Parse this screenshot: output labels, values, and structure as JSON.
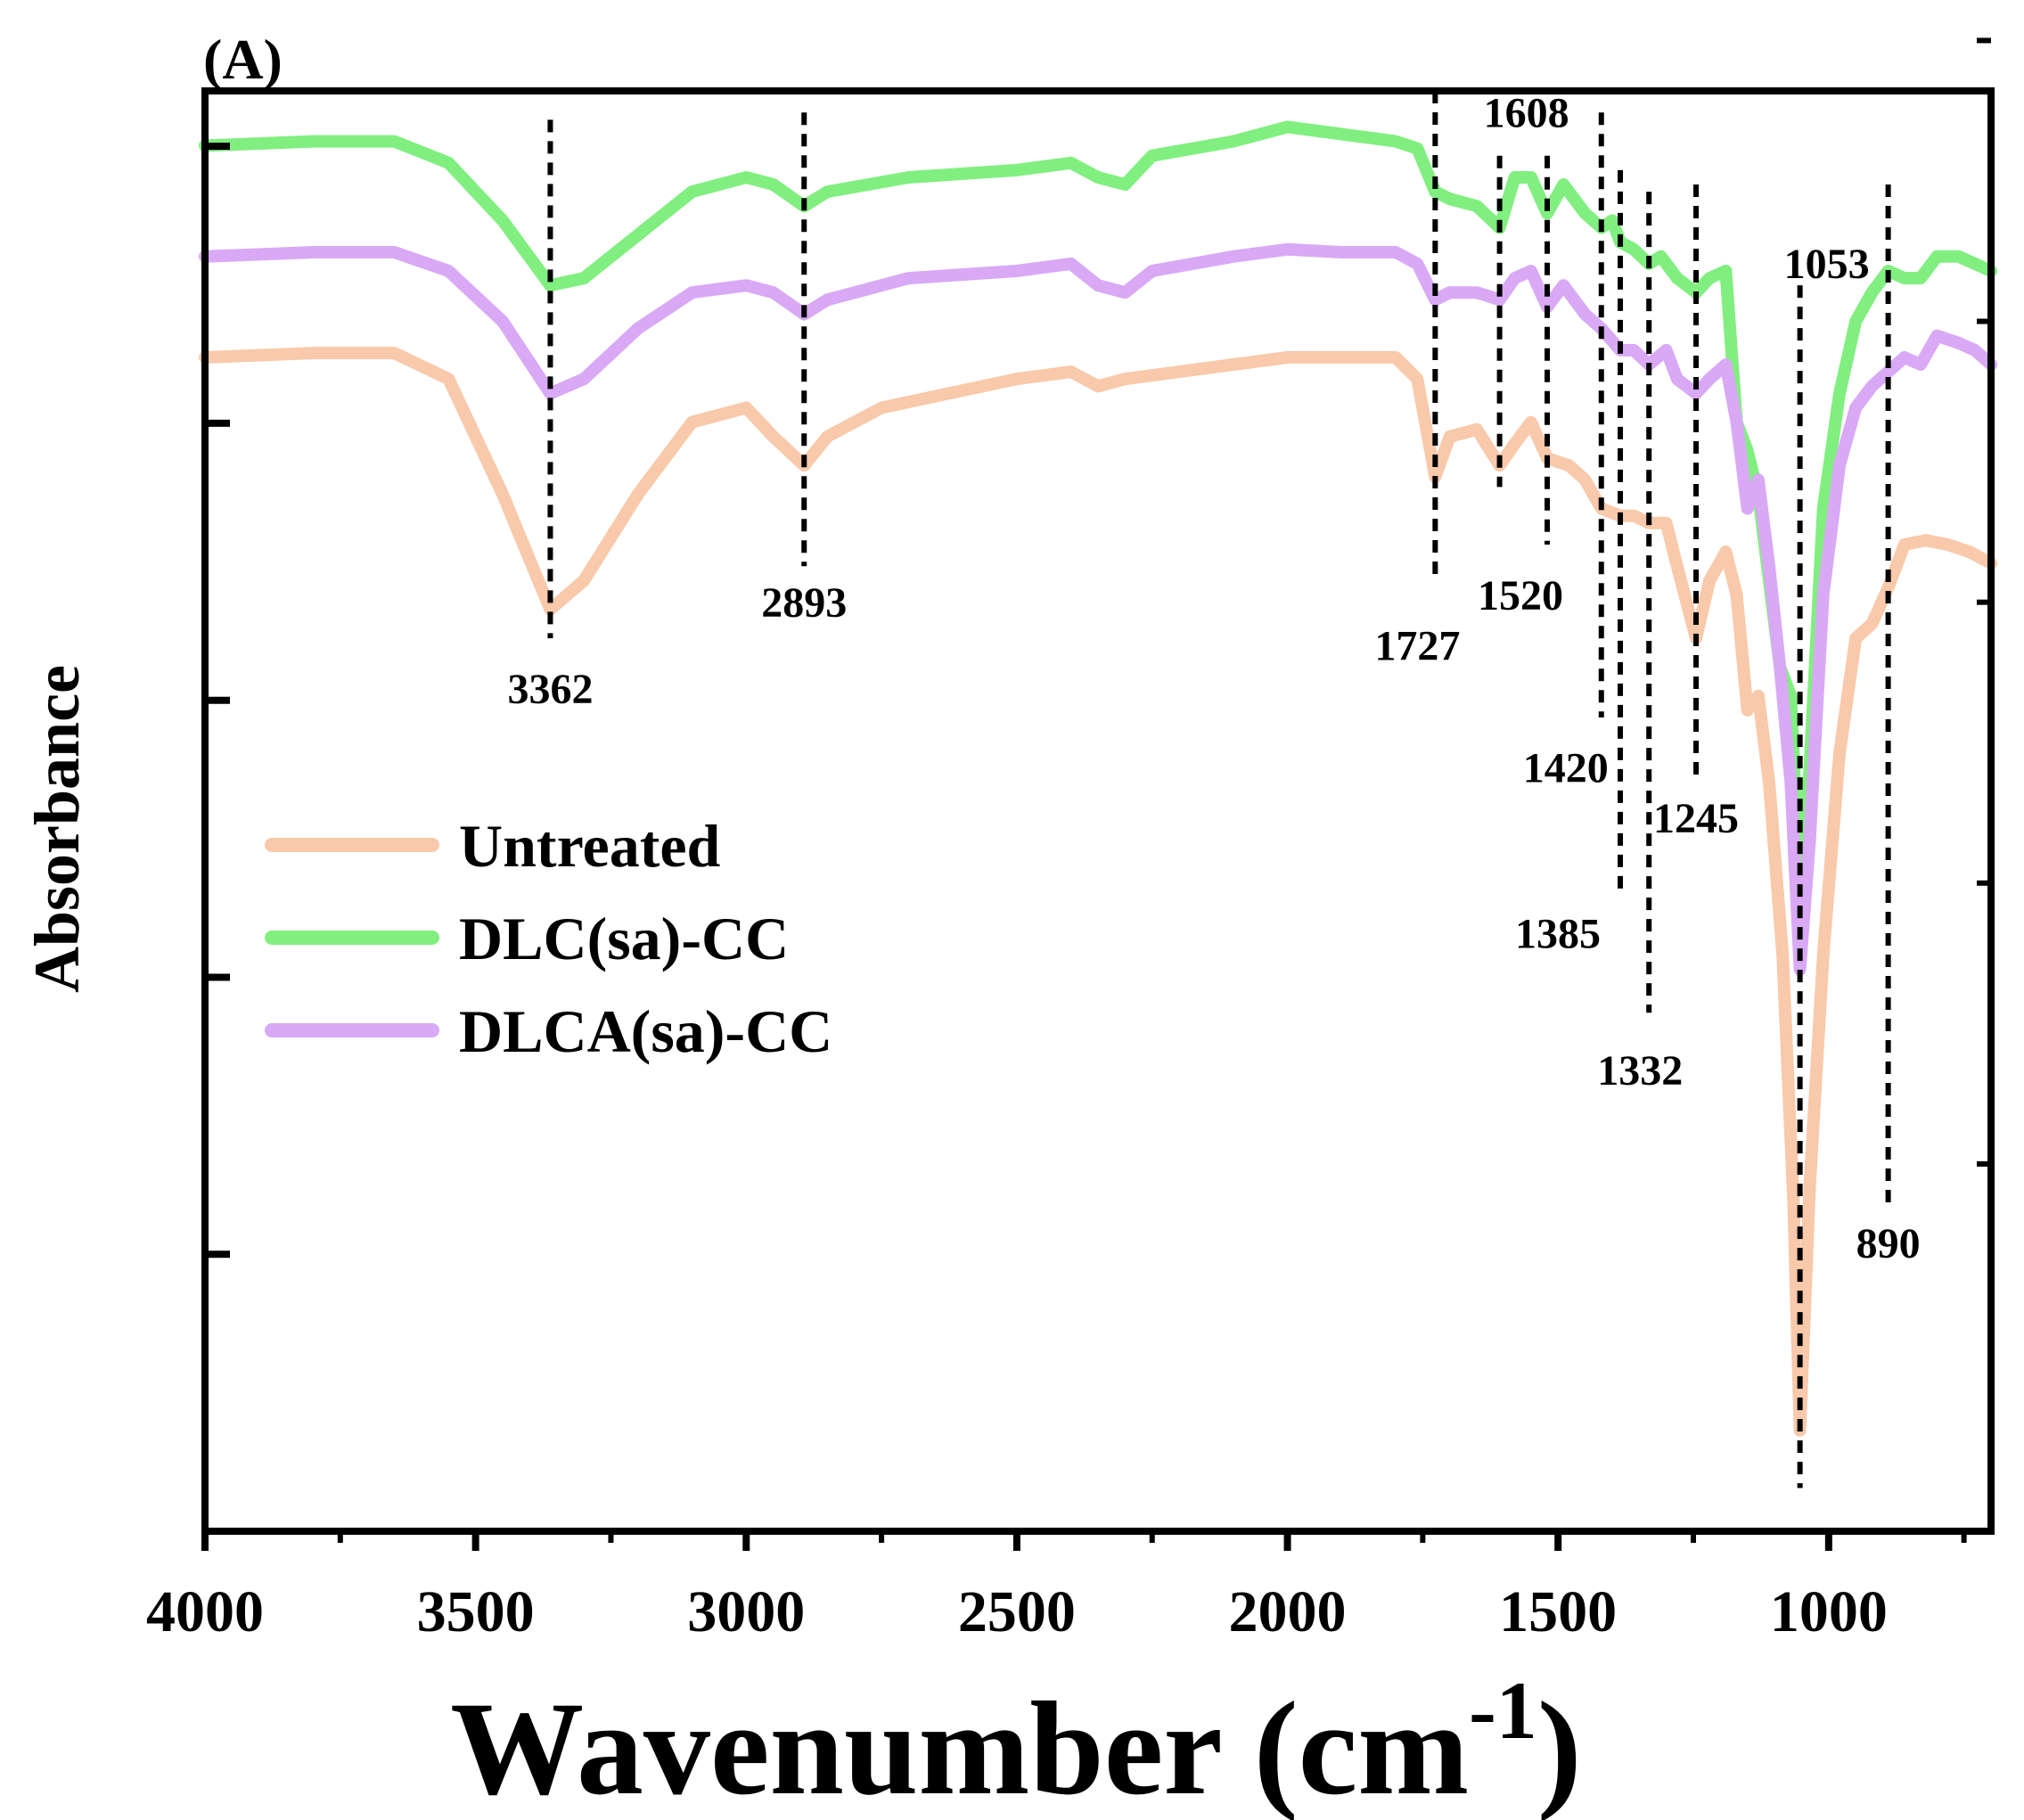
{
  "chart_data": {
    "type": "line",
    "panel_label": "(A)",
    "title": "",
    "xlabel": "Wavenumber (cm",
    "xlabel_superscript": "-1",
    "xlabel_close": ")",
    "ylabel": "Absorbance",
    "xlim": [
      4000,
      700
    ],
    "x_reversed": true,
    "ylim": [
      0,
      1
    ],
    "y_ticklabels_shown": false,
    "x_ticks": [
      4000,
      3500,
      3000,
      2500,
      2000,
      1500,
      1000
    ],
    "x_ticklabels": [
      "4000",
      "3500",
      "3000",
      "2500",
      "2000",
      "1500",
      "1000"
    ],
    "grid": false,
    "legend_position": "center-left",
    "series": [
      {
        "name": "Untreated",
        "color": "#F8C9AA",
        "points": [
          [
            4000,
            0.815
          ],
          [
            3800,
            0.818
          ],
          [
            3650,
            0.818
          ],
          [
            3550,
            0.8
          ],
          [
            3450,
            0.72
          ],
          [
            3362,
            0.64
          ],
          [
            3300,
            0.66
          ],
          [
            3200,
            0.72
          ],
          [
            3100,
            0.77
          ],
          [
            3000,
            0.78
          ],
          [
            2950,
            0.76
          ],
          [
            2893,
            0.74
          ],
          [
            2850,
            0.76
          ],
          [
            2750,
            0.78
          ],
          [
            2500,
            0.8
          ],
          [
            2400,
            0.805
          ],
          [
            2350,
            0.795
          ],
          [
            2300,
            0.8
          ],
          [
            2100,
            0.81
          ],
          [
            2000,
            0.815
          ],
          [
            1900,
            0.815
          ],
          [
            1800,
            0.815
          ],
          [
            1760,
            0.8
          ],
          [
            1727,
            0.732
          ],
          [
            1700,
            0.76
          ],
          [
            1650,
            0.765
          ],
          [
            1608,
            0.74
          ],
          [
            1580,
            0.755
          ],
          [
            1550,
            0.77
          ],
          [
            1520,
            0.745
          ],
          [
            1480,
            0.74
          ],
          [
            1450,
            0.73
          ],
          [
            1420,
            0.71
          ],
          [
            1385,
            0.705
          ],
          [
            1360,
            0.705
          ],
          [
            1332,
            0.7
          ],
          [
            1300,
            0.7
          ],
          [
            1280,
            0.67
          ],
          [
            1245,
            0.62
          ],
          [
            1220,
            0.66
          ],
          [
            1190,
            0.68
          ],
          [
            1170,
            0.65
          ],
          [
            1150,
            0.57
          ],
          [
            1130,
            0.58
          ],
          [
            1110,
            0.52
          ],
          [
            1085,
            0.4
          ],
          [
            1065,
            0.23
          ],
          [
            1053,
            0.07
          ],
          [
            1035,
            0.24
          ],
          [
            1010,
            0.4
          ],
          [
            980,
            0.54
          ],
          [
            950,
            0.62
          ],
          [
            920,
            0.63
          ],
          [
            890,
            0.655
          ],
          [
            860,
            0.685
          ],
          [
            820,
            0.688
          ],
          [
            780,
            0.685
          ],
          [
            740,
            0.68
          ],
          [
            700,
            0.672
          ]
        ]
      },
      {
        "name": "DLC(sa)-CC",
        "color": "#80EF80",
        "points": [
          [
            4000,
            0.962
          ],
          [
            3800,
            0.965
          ],
          [
            3650,
            0.965
          ],
          [
            3550,
            0.95
          ],
          [
            3450,
            0.91
          ],
          [
            3362,
            0.865
          ],
          [
            3300,
            0.87
          ],
          [
            3200,
            0.9
          ],
          [
            3100,
            0.93
          ],
          [
            3000,
            0.94
          ],
          [
            2950,
            0.935
          ],
          [
            2893,
            0.92
          ],
          [
            2850,
            0.93
          ],
          [
            2700,
            0.94
          ],
          [
            2500,
            0.945
          ],
          [
            2400,
            0.95
          ],
          [
            2350,
            0.94
          ],
          [
            2300,
            0.935
          ],
          [
            2250,
            0.955
          ],
          [
            2100,
            0.965
          ],
          [
            2000,
            0.975
          ],
          [
            1900,
            0.97
          ],
          [
            1800,
            0.965
          ],
          [
            1760,
            0.96
          ],
          [
            1727,
            0.93
          ],
          [
            1700,
            0.925
          ],
          [
            1650,
            0.92
          ],
          [
            1608,
            0.905
          ],
          [
            1580,
            0.94
          ],
          [
            1550,
            0.94
          ],
          [
            1520,
            0.915
          ],
          [
            1490,
            0.935
          ],
          [
            1450,
            0.915
          ],
          [
            1420,
            0.905
          ],
          [
            1400,
            0.91
          ],
          [
            1385,
            0.895
          ],
          [
            1360,
            0.89
          ],
          [
            1332,
            0.88
          ],
          [
            1310,
            0.885
          ],
          [
            1280,
            0.87
          ],
          [
            1245,
            0.86
          ],
          [
            1220,
            0.87
          ],
          [
            1190,
            0.875
          ],
          [
            1170,
            0.77
          ],
          [
            1150,
            0.75
          ],
          [
            1130,
            0.72
          ],
          [
            1110,
            0.66
          ],
          [
            1090,
            0.6
          ],
          [
            1070,
            0.58
          ],
          [
            1053,
            0.44
          ],
          [
            1035,
            0.53
          ],
          [
            1010,
            0.71
          ],
          [
            980,
            0.79
          ],
          [
            950,
            0.84
          ],
          [
            920,
            0.86
          ],
          [
            890,
            0.875
          ],
          [
            860,
            0.87
          ],
          [
            830,
            0.87
          ],
          [
            800,
            0.885
          ],
          [
            760,
            0.885
          ],
          [
            730,
            0.88
          ],
          [
            700,
            0.875
          ]
        ]
      },
      {
        "name": "DLCA(sa)-CC",
        "color": "#D9A9F5",
        "points": [
          [
            4000,
            0.885
          ],
          [
            3800,
            0.888
          ],
          [
            3650,
            0.888
          ],
          [
            3550,
            0.875
          ],
          [
            3450,
            0.84
          ],
          [
            3362,
            0.79
          ],
          [
            3300,
            0.8
          ],
          [
            3200,
            0.835
          ],
          [
            3100,
            0.86
          ],
          [
            3000,
            0.865
          ],
          [
            2950,
            0.86
          ],
          [
            2893,
            0.845
          ],
          [
            2850,
            0.855
          ],
          [
            2700,
            0.87
          ],
          [
            2500,
            0.875
          ],
          [
            2400,
            0.88
          ],
          [
            2350,
            0.865
          ],
          [
            2300,
            0.86
          ],
          [
            2250,
            0.875
          ],
          [
            2100,
            0.885
          ],
          [
            2000,
            0.89
          ],
          [
            1900,
            0.888
          ],
          [
            1800,
            0.888
          ],
          [
            1760,
            0.88
          ],
          [
            1727,
            0.855
          ],
          [
            1700,
            0.86
          ],
          [
            1650,
            0.86
          ],
          [
            1608,
            0.855
          ],
          [
            1580,
            0.87
          ],
          [
            1550,
            0.875
          ],
          [
            1520,
            0.85
          ],
          [
            1490,
            0.865
          ],
          [
            1450,
            0.845
          ],
          [
            1420,
            0.835
          ],
          [
            1385,
            0.82
          ],
          [
            1360,
            0.82
          ],
          [
            1332,
            0.81
          ],
          [
            1300,
            0.82
          ],
          [
            1280,
            0.8
          ],
          [
            1245,
            0.79
          ],
          [
            1220,
            0.8
          ],
          [
            1190,
            0.81
          ],
          [
            1170,
            0.77
          ],
          [
            1150,
            0.71
          ],
          [
            1130,
            0.73
          ],
          [
            1110,
            0.67
          ],
          [
            1090,
            0.6
          ],
          [
            1070,
            0.52
          ],
          [
            1053,
            0.39
          ],
          [
            1035,
            0.48
          ],
          [
            1010,
            0.65
          ],
          [
            980,
            0.74
          ],
          [
            950,
            0.78
          ],
          [
            920,
            0.795
          ],
          [
            890,
            0.805
          ],
          [
            860,
            0.815
          ],
          [
            830,
            0.81
          ],
          [
            800,
            0.83
          ],
          [
            760,
            0.825
          ],
          [
            730,
            0.82
          ],
          [
            700,
            0.81
          ]
        ]
      }
    ],
    "peak_markers": [
      {
        "x": 3362,
        "label": "3362",
        "y_top": 0.98,
        "y_bottom": 0.62,
        "label_y": 0.575,
        "label_dx": 0
      },
      {
        "x": 2893,
        "label": "2893",
        "y_top": 0.985,
        "y_bottom": 0.67,
        "label_y": 0.635,
        "label_dx": 0
      },
      {
        "x": 1727,
        "label": "1727",
        "y_top": 1.0,
        "y_bottom": 0.66,
        "label_y": 0.605,
        "label_dx": -2
      },
      {
        "x": 1608,
        "label": "1608",
        "y_top": 0.955,
        "y_bottom": 0.725,
        "label_y": 0.975,
        "label_dx": 3
      },
      {
        "x": 1520,
        "label": "1520",
        "y_top": 0.955,
        "y_bottom": 0.685,
        "label_y": 0.64,
        "label_dx": -3
      },
      {
        "x": 1420,
        "label": "1420",
        "y_top": 0.985,
        "y_bottom": 0.565,
        "label_y": 0.52,
        "label_dx": -4
      },
      {
        "x": 1385,
        "label": "1385",
        "y_top": 0.945,
        "y_bottom": 0.445,
        "label_y": 0.405,
        "label_dx": -7
      },
      {
        "x": 1332,
        "label": "1332",
        "y_top": 0.93,
        "y_bottom": 0.36,
        "label_y": 0.31,
        "label_dx": -1
      },
      {
        "x": 1245,
        "label": "1245",
        "y_top": 0.935,
        "y_bottom": 0.525,
        "label_y": 0.485,
        "label_dx": 0
      },
      {
        "x": 1053,
        "label": "1053",
        "y_top": 0.865,
        "y_bottom": 0.03,
        "label_y": 0.87,
        "label_dx": 3
      },
      {
        "x": 890,
        "label": "890",
        "y_top": 0.935,
        "y_bottom": 0.225,
        "label_y": 0.19,
        "label_dx": 0
      }
    ]
  }
}
